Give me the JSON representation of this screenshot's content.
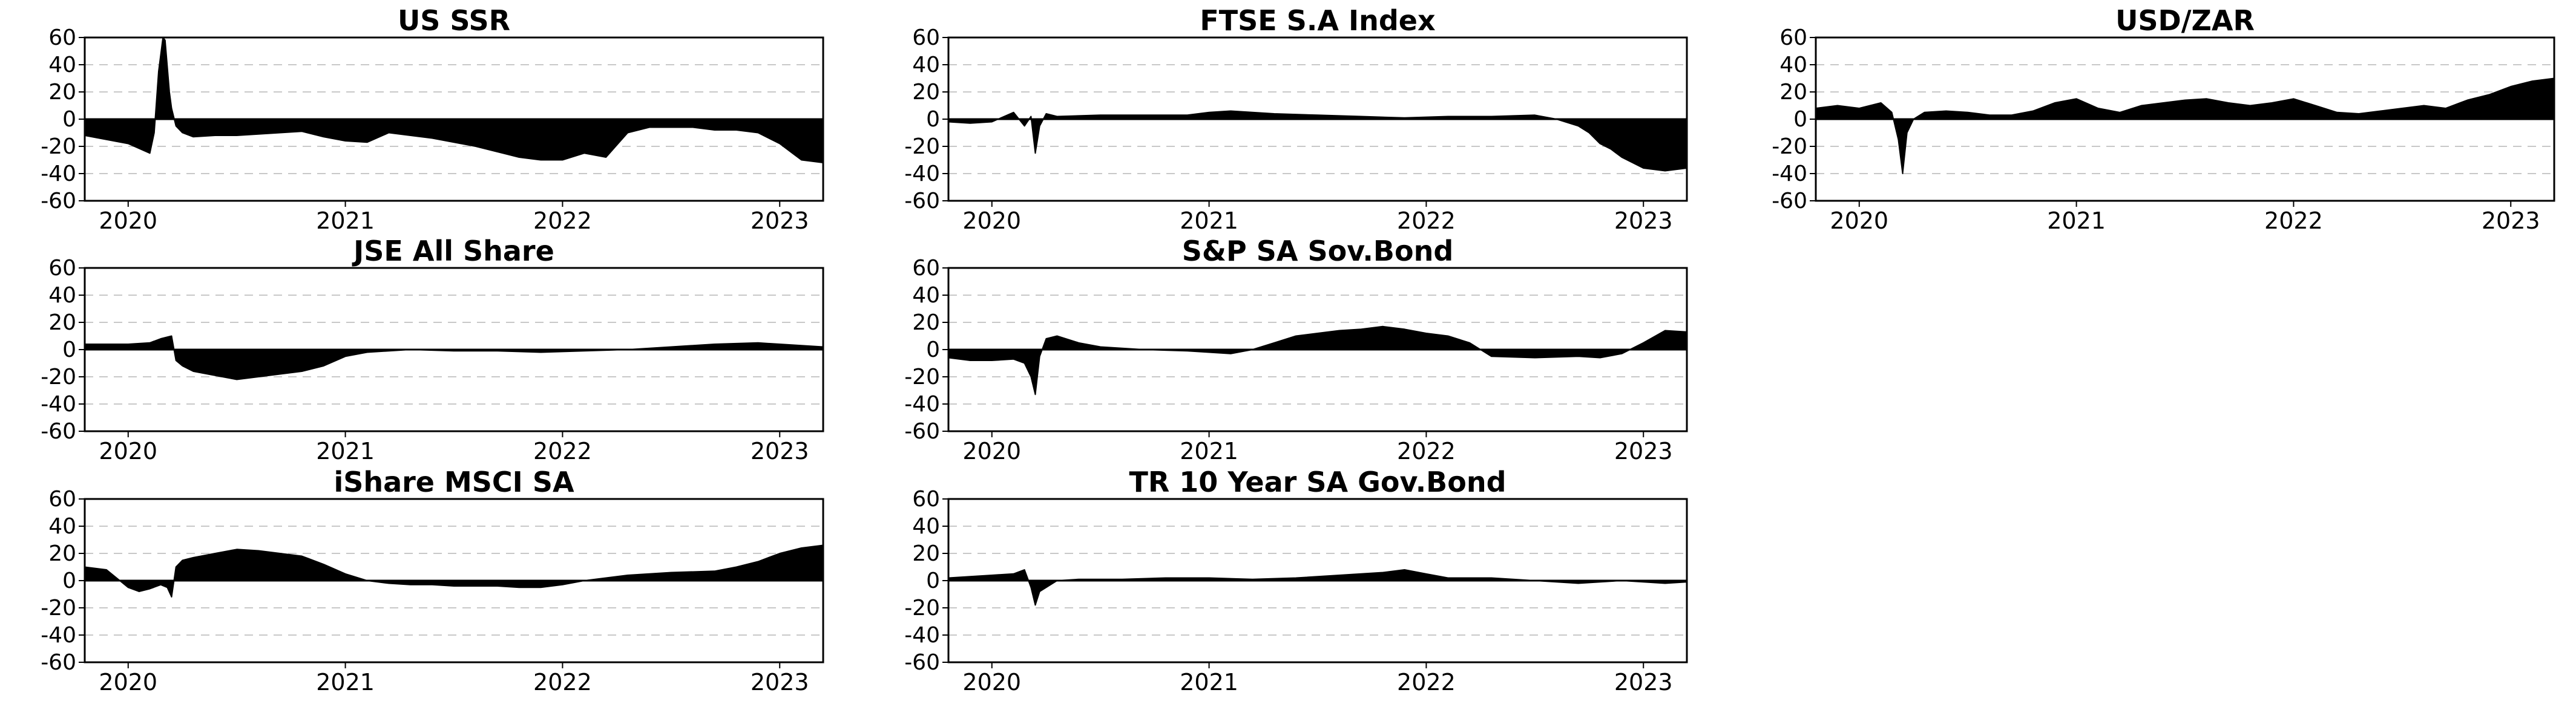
{
  "figure": {
    "colors": {
      "fill": "#000000",
      "grid": "#c8c8c8",
      "frame": "#000000",
      "background": "#ffffff"
    }
  },
  "chart_data": [
    {
      "type": "area",
      "title": "US SSR",
      "xlabel": "",
      "ylabel": "",
      "xlim": [
        2019.8,
        2023.2
      ],
      "ylim": [
        -60,
        60
      ],
      "yticks": [
        60,
        40,
        20,
        0,
        -20,
        -40,
        -60
      ],
      "xticks": [
        "2020",
        "2021",
        "2022",
        "2023"
      ],
      "grid": "horizontal dashed",
      "series": [
        {
          "x": [
            2019.8,
            2019.9,
            2020.0,
            2020.1,
            2020.12,
            2020.14,
            2020.16,
            2020.17,
            2020.19,
            2020.2,
            2020.22,
            2020.25,
            2020.3,
            2020.4,
            2020.5,
            2020.6,
            2020.7,
            2020.8,
            2020.9,
            2021.0,
            2021.1,
            2021.2,
            2021.3,
            2021.4,
            2021.5,
            2021.6,
            2021.7,
            2021.8,
            2021.9,
            2022.0,
            2022.1,
            2022.2,
            2022.3,
            2022.4,
            2022.5,
            2022.6,
            2022.7,
            2022.8,
            2022.9,
            2023.0,
            2023.1,
            2023.2
          ],
          "values": [
            -12,
            -15,
            -18,
            -25,
            -10,
            35,
            60,
            58,
            20,
            8,
            -5,
            -10,
            -13,
            -12,
            -12,
            -11,
            -10,
            -9,
            -13,
            -16,
            -17,
            -10,
            -12,
            -14,
            -17,
            -20,
            -24,
            -28,
            -30,
            -30,
            -25,
            -28,
            -10,
            -6,
            -6,
            -6,
            -8,
            -8,
            -10,
            -18,
            -30,
            -32
          ]
        }
      ]
    },
    {
      "type": "area",
      "title": "FTSE S.A Index",
      "xlabel": "",
      "ylabel": "",
      "xlim": [
        2019.8,
        2023.2
      ],
      "ylim": [
        -60,
        60
      ],
      "yticks": [
        60,
        40,
        20,
        0,
        -20,
        -40,
        -60
      ],
      "xticks": [
        "2020",
        "2021",
        "2022",
        "2023"
      ],
      "grid": "horizontal dashed",
      "series": [
        {
          "x": [
            2019.8,
            2019.9,
            2020.0,
            2020.1,
            2020.15,
            2020.18,
            2020.2,
            2020.22,
            2020.25,
            2020.3,
            2020.5,
            2020.7,
            2020.9,
            2021.0,
            2021.1,
            2021.3,
            2021.5,
            2021.7,
            2021.9,
            2022.1,
            2022.3,
            2022.5,
            2022.6,
            2022.7,
            2022.75,
            2022.8,
            2022.85,
            2022.9,
            2022.95,
            2023.0,
            2023.1,
            2023.2
          ],
          "values": [
            -2,
            -3,
            -2,
            5,
            -5,
            2,
            -25,
            -5,
            4,
            2,
            3,
            3,
            3,
            5,
            6,
            4,
            3,
            2,
            1,
            2,
            2,
            3,
            0,
            -5,
            -10,
            -18,
            -22,
            -28,
            -32,
            -36,
            -38,
            -36
          ]
        }
      ]
    },
    {
      "type": "area",
      "title": "USD/ZAR",
      "xlabel": "",
      "ylabel": "",
      "xlim": [
        2019.8,
        2023.2
      ],
      "ylim": [
        -60,
        60
      ],
      "yticks": [
        60,
        40,
        20,
        0,
        -20,
        -40,
        -60
      ],
      "xticks": [
        "2020",
        "2021",
        "2022",
        "2023"
      ],
      "grid": "horizontal dashed",
      "series": [
        {
          "x": [
            2019.8,
            2019.9,
            2020.0,
            2020.1,
            2020.15,
            2020.18,
            2020.2,
            2020.22,
            2020.25,
            2020.3,
            2020.4,
            2020.5,
            2020.6,
            2020.7,
            2020.8,
            2020.9,
            2021.0,
            2021.1,
            2021.2,
            2021.3,
            2021.4,
            2021.5,
            2021.6,
            2021.7,
            2021.8,
            2021.9,
            2022.0,
            2022.1,
            2022.2,
            2022.3,
            2022.4,
            2022.5,
            2022.6,
            2022.7,
            2022.8,
            2022.9,
            2023.0,
            2023.1,
            2023.2
          ],
          "values": [
            8,
            10,
            8,
            12,
            5,
            -15,
            -40,
            -10,
            0,
            5,
            6,
            5,
            3,
            3,
            6,
            12,
            15,
            8,
            5,
            10,
            12,
            14,
            15,
            12,
            10,
            12,
            15,
            10,
            5,
            4,
            6,
            8,
            10,
            8,
            14,
            18,
            24,
            28,
            30
          ]
        }
      ]
    },
    {
      "type": "area",
      "title": "JSE All Share",
      "xlabel": "",
      "ylabel": "",
      "xlim": [
        2019.8,
        2023.2
      ],
      "ylim": [
        -60,
        60
      ],
      "yticks": [
        60,
        40,
        20,
        0,
        -20,
        -40,
        -60
      ],
      "xticks": [
        "2020",
        "2021",
        "2022",
        "2023"
      ],
      "grid": "horizontal dashed",
      "series": [
        {
          "x": [
            2019.8,
            2019.9,
            2020.0,
            2020.1,
            2020.15,
            2020.2,
            2020.22,
            2020.25,
            2020.3,
            2020.4,
            2020.5,
            2020.6,
            2020.7,
            2020.8,
            2020.9,
            2021.0,
            2021.1,
            2021.3,
            2021.5,
            2021.7,
            2021.9,
            2022.1,
            2022.3,
            2022.5,
            2022.7,
            2022.9,
            2023.0,
            2023.1,
            2023.2
          ],
          "values": [
            4,
            4,
            4,
            5,
            8,
            10,
            -8,
            -12,
            -16,
            -19,
            -22,
            -20,
            -18,
            -16,
            -12,
            -5,
            -2,
            0,
            -1,
            -1,
            -2,
            -1,
            0,
            2,
            4,
            5,
            4,
            3,
            2
          ]
        }
      ]
    },
    {
      "type": "area",
      "title": "S&P  SA Sov.Bond",
      "xlabel": "",
      "ylabel": "",
      "xlim": [
        2019.8,
        2023.2
      ],
      "ylim": [
        -60,
        60
      ],
      "yticks": [
        60,
        40,
        20,
        0,
        -20,
        -40,
        -60
      ],
      "xticks": [
        "2020",
        "2021",
        "2022",
        "2023"
      ],
      "grid": "horizontal dashed",
      "series": [
        {
          "x": [
            2019.8,
            2019.9,
            2020.0,
            2020.1,
            2020.15,
            2020.18,
            2020.2,
            2020.22,
            2020.25,
            2020.3,
            2020.4,
            2020.5,
            2020.7,
            2020.9,
            2021.0,
            2021.1,
            2021.2,
            2021.3,
            2021.4,
            2021.5,
            2021.6,
            2021.7,
            2021.8,
            2021.9,
            2022.0,
            2022.1,
            2022.2,
            2022.3,
            2022.5,
            2022.7,
            2022.8,
            2022.9,
            2023.0,
            2023.1,
            2023.2
          ],
          "values": [
            -6,
            -8,
            -8,
            -7,
            -10,
            -20,
            -33,
            -5,
            8,
            10,
            5,
            2,
            0,
            -1,
            -2,
            -3,
            0,
            5,
            10,
            12,
            14,
            15,
            17,
            15,
            12,
            10,
            5,
            -5,
            -6,
            -5,
            -6,
            -3,
            5,
            14,
            13
          ]
        }
      ]
    },
    {
      "type": "area",
      "title": "iShare MSCI SA",
      "xlabel": "",
      "ylabel": "",
      "xlim": [
        2019.8,
        2023.2
      ],
      "ylim": [
        -60,
        60
      ],
      "yticks": [
        60,
        40,
        20,
        0,
        -20,
        -40,
        -60
      ],
      "xticks": [
        "2020",
        "2021",
        "2022",
        "2023"
      ],
      "grid": "horizontal dashed",
      "series": [
        {
          "x": [
            2019.8,
            2019.9,
            2020.0,
            2020.05,
            2020.1,
            2020.15,
            2020.18,
            2020.2,
            2020.22,
            2020.25,
            2020.3,
            2020.4,
            2020.5,
            2020.6,
            2020.7,
            2020.8,
            2020.9,
            2021.0,
            2021.1,
            2021.2,
            2021.3,
            2021.4,
            2021.5,
            2021.6,
            2021.7,
            2021.8,
            2021.9,
            2022.0,
            2022.1,
            2022.3,
            2022.5,
            2022.7,
            2022.8,
            2022.9,
            2023.0,
            2023.1,
            2023.2
          ],
          "values": [
            10,
            8,
            -5,
            -8,
            -6,
            -3,
            -5,
            -12,
            10,
            15,
            17,
            20,
            23,
            22,
            20,
            18,
            12,
            5,
            0,
            -2,
            -3,
            -3,
            -4,
            -4,
            -4,
            -5,
            -5,
            -3,
            0,
            4,
            6,
            7,
            10,
            14,
            20,
            24,
            26
          ]
        }
      ]
    },
    {
      "type": "area",
      "title": "TR 10 Year SA Gov.Bond",
      "xlabel": "",
      "ylabel": "",
      "xlim": [
        2019.8,
        2023.2
      ],
      "ylim": [
        -60,
        60
      ],
      "yticks": [
        60,
        40,
        20,
        0,
        -20,
        -40,
        -60
      ],
      "xticks": [
        "2020",
        "2021",
        "2022",
        "2023"
      ],
      "grid": "horizontal dashed",
      "series": [
        {
          "x": [
            2019.8,
            2019.9,
            2020.0,
            2020.1,
            2020.15,
            2020.18,
            2020.2,
            2020.22,
            2020.25,
            2020.3,
            2020.4,
            2020.6,
            2020.8,
            2021.0,
            2021.2,
            2021.4,
            2021.6,
            2021.8,
            2021.9,
            2022.0,
            2022.1,
            2022.3,
            2022.5,
            2022.7,
            2022.9,
            2023.0,
            2023.1,
            2023.2
          ],
          "values": [
            2,
            3,
            4,
            5,
            8,
            -5,
            -18,
            -8,
            -5,
            0,
            1,
            1,
            2,
            2,
            1,
            2,
            4,
            6,
            8,
            5,
            2,
            2,
            0,
            -2,
            0,
            -1,
            -2,
            -1
          ]
        }
      ]
    }
  ]
}
